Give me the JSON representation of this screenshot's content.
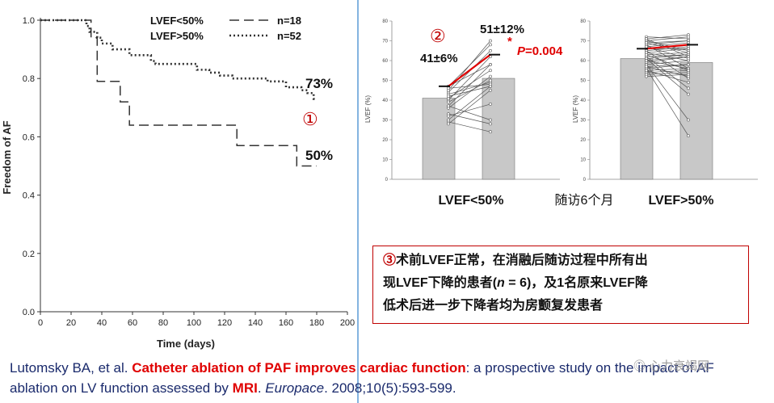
{
  "chart_data": [
    {
      "type": "line",
      "subtype": "kaplan-meier",
      "ylabel": "Freedom of AF",
      "xlabel": "Time (days)",
      "xlim": [
        0,
        200
      ],
      "ylim": [
        0.0,
        1.0
      ],
      "xticks": [
        "0",
        "20",
        "40",
        "60",
        "80",
        "100",
        "120",
        "140",
        "160",
        "180",
        "200"
      ],
      "yticks": [
        "0.0",
        "0.2",
        "0.4",
        "0.6",
        "0.8",
        "1.0"
      ],
      "legend": [
        {
          "label": "LVEF<50%",
          "n": "n=18",
          "style": "dashed"
        },
        {
          "label": "LVEF>50%",
          "n": "n=52",
          "style": "dotted"
        }
      ],
      "series": [
        {
          "name": "LVEF<50%",
          "x": [
            0,
            33,
            33,
            37,
            37,
            52,
            52,
            58,
            58,
            128,
            128,
            167,
            167,
            180
          ],
          "y": [
            1.0,
            1.0,
            0.94,
            0.94,
            0.79,
            0.79,
            0.72,
            0.72,
            0.64,
            0.64,
            0.57,
            0.57,
            0.5,
            0.5
          ]
        },
        {
          "name": "LVEF>50%",
          "x": [
            0,
            30,
            30,
            32,
            32,
            37,
            37,
            40,
            40,
            47,
            47,
            58,
            58,
            72,
            72,
            75,
            75,
            102,
            102,
            110,
            110,
            117,
            117,
            125,
            125,
            148,
            148,
            160,
            160,
            170,
            170,
            174,
            174,
            178,
            178,
            180
          ],
          "y": [
            1.0,
            1.0,
            0.98,
            0.98,
            0.96,
            0.96,
            0.94,
            0.94,
            0.92,
            0.92,
            0.9,
            0.9,
            0.88,
            0.88,
            0.86,
            0.86,
            0.85,
            0.85,
            0.83,
            0.83,
            0.82,
            0.82,
            0.81,
            0.81,
            0.8,
            0.8,
            0.79,
            0.79,
            0.77,
            0.77,
            0.76,
            0.76,
            0.75,
            0.75,
            0.73,
            0.73
          ]
        }
      ],
      "end_labels": [
        "73%",
        "50%"
      ],
      "marker": "①"
    },
    {
      "type": "bar",
      "subtype": "before-after",
      "group": "LVEF<50%",
      "ylabel": "LVEF (%)",
      "ylim": [
        0,
        80
      ],
      "yticks": [
        "0",
        "10",
        "20",
        "30",
        "40",
        "50",
        "60",
        "70",
        "80"
      ],
      "bars": [
        {
          "label": "pre",
          "value": 41
        },
        {
          "label": "post",
          "value": 51
        }
      ],
      "mean_line": {
        "from": 47,
        "to": 63
      },
      "pairs": [
        [
          37,
          58
        ],
        [
          40,
          62
        ],
        [
          44,
          65
        ],
        [
          45,
          70
        ],
        [
          47,
          68
        ],
        [
          47,
          58
        ],
        [
          36,
          52
        ],
        [
          41,
          55
        ],
        [
          43,
          49
        ],
        [
          39,
          50
        ],
        [
          33,
          28
        ],
        [
          29,
          24
        ],
        [
          28,
          45
        ],
        [
          42,
          47
        ],
        [
          46,
          48
        ],
        [
          37,
          30
        ],
        [
          30,
          47
        ],
        [
          32,
          38
        ]
      ],
      "annotations": {
        "pre": "41±6%",
        "post": "51±12%",
        "p": "=0.004",
        "p_prefix": "P",
        "star": "*",
        "marker": "②"
      }
    },
    {
      "type": "bar",
      "subtype": "before-after",
      "group": "LVEF>50%",
      "ylabel": "LVEF (%)",
      "ylim": [
        0,
        80
      ],
      "yticks": [
        "0",
        "10",
        "20",
        "30",
        "40",
        "50",
        "60",
        "70",
        "80"
      ],
      "bars": [
        {
          "label": "pre",
          "value": 61
        },
        {
          "label": "post",
          "value": 59
        }
      ],
      "mean_line": {
        "from": 66,
        "to": 68
      },
      "pairs": [
        [
          72,
          71
        ],
        [
          71,
          73
        ],
        [
          70,
          72
        ],
        [
          69,
          70
        ],
        [
          68,
          70
        ],
        [
          67,
          69
        ],
        [
          66,
          68
        ],
        [
          66,
          66
        ],
        [
          65,
          67
        ],
        [
          64,
          66
        ],
        [
          63,
          64
        ],
        [
          62,
          63
        ],
        [
          61,
          63
        ],
        [
          60,
          62
        ],
        [
          59,
          62
        ],
        [
          58,
          60
        ],
        [
          57,
          58
        ],
        [
          56,
          58
        ],
        [
          55,
          56
        ],
        [
          54,
          55
        ],
        [
          53,
          54
        ],
        [
          52,
          53
        ],
        [
          68,
          56
        ],
        [
          65,
          51
        ],
        [
          62,
          46
        ],
        [
          61,
          43
        ],
        [
          58,
          30
        ],
        [
          56,
          22
        ],
        [
          70,
          65
        ],
        [
          64,
          60
        ],
        [
          60,
          56
        ],
        [
          57,
          52
        ],
        [
          55,
          49
        ],
        [
          71,
          62
        ],
        [
          69,
          64
        ],
        [
          67,
          61
        ],
        [
          63,
          55
        ]
      ]
    }
  ],
  "labels": {
    "group1": "LVEF<50%",
    "middle": "随访6个月",
    "group2": "LVEF>50%"
  },
  "note": {
    "marker": "③",
    "line1": "术前LVEF正常，在消融后随访过程中所有出",
    "line2a": "现LVEF下降的患者(",
    "line2n": "n",
    "line2b": " = 6)，及1名原来LVEF降",
    "line3": "低术后进一步下降者均为房颤复发患者"
  },
  "citation": {
    "authors": "Lutomsky BA, et al. ",
    "title_red": "Catheter ablation of PAF improves cardiac function",
    "title_rest_a": ": a prospective study on the impact of AF ablation on LV function assessed by ",
    "mri": "MRI",
    "dot": ". ",
    "journal": "Europace",
    "ref": ". 2008;10(5):593-599."
  },
  "watermark": "心力衰竭网",
  "colors": {
    "red": "#e00000",
    "dark_red": "#c00000",
    "navy": "#1a2a6c",
    "bar_fill": "#c8c8c8",
    "divider": "#5b9bd5"
  }
}
